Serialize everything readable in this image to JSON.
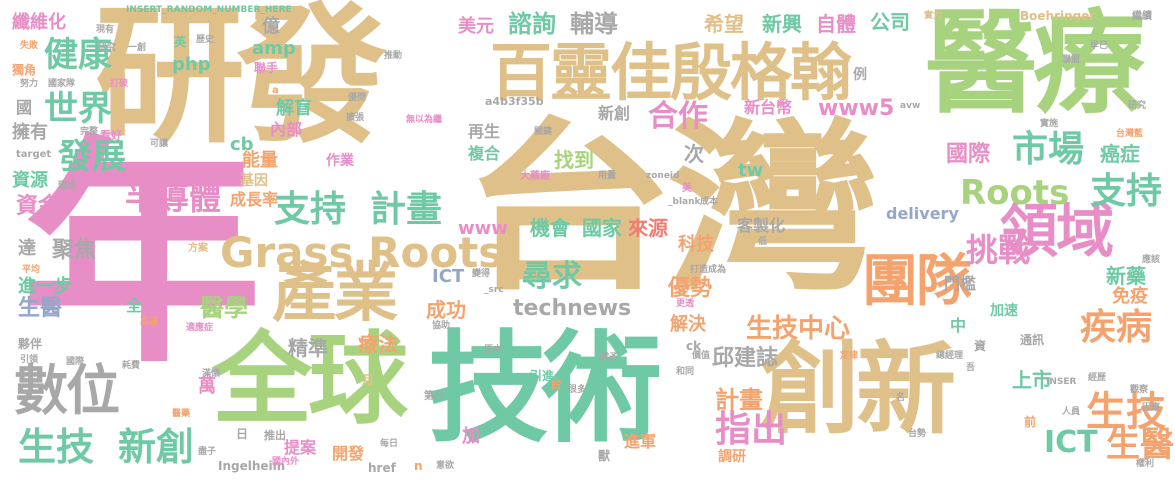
{
  "palette": {
    "tan": "#e0c089",
    "green": "#a8d37e",
    "teal": "#6fc9a4",
    "pink": "#e88ec7",
    "gray": "#a8a8a8",
    "orange": "#f4a36e",
    "blue": "#95a7c9",
    "red": "#ef7d71",
    "lime": "#c6db5c"
  },
  "words": {
    "w001": "研發",
    "w002": "台灣",
    "w003": "年",
    "w004": "醫療",
    "w005": "技術",
    "w006": "創新",
    "w007": "全球",
    "w008": "百靈佳殷格翰",
    "w009": "產業",
    "w010": "數位",
    "w011": "Grass Roots",
    "w012": "團隊",
    "w013": "領域",
    "w014": "Roots",
    "w015": "支持",
    "w016": "支持",
    "w017": "計畫",
    "w018": "健康",
    "w019": "世界",
    "w020": "發展",
    "w021": "半導體",
    "w022": "市場",
    "w023": "疾病",
    "w024": "挑戰",
    "w025": "生技",
    "w026": "新創",
    "w027": "指出",
    "w028": "生技",
    "w029": "ICT",
    "w030": "生醫",
    "w031": "尋求",
    "w032": "technews",
    "w033": "機會",
    "w034": "國家",
    "w035": "來源",
    "w036": "合作",
    "w037": "諮詢",
    "w038": "輔導",
    "w039": "希望",
    "w040": "公司",
    "w041": "新興",
    "w042": "自體",
    "w043": "美元",
    "w044": "www5",
    "w045": "新台幣",
    "w046": "再生",
    "w047": "複合",
    "w048": "找到",
    "w049": "國際",
    "w050": "癌症",
    "w051": "新藥",
    "w052": "免疫",
    "w053": "上市",
    "w054": "計畫",
    "w055": "生技中心",
    "w056": "邱建誌",
    "w057": "優勢",
    "w058": "解決",
    "w059": "成功",
    "w060": "精準",
    "w061": "療法",
    "w062": "醫學",
    "w063": "聚焦",
    "w064": "進一步",
    "w065": "生醫",
    "w066": "資金",
    "w067": "資源",
    "w068": "擁有",
    "w069": "纖維化",
    "w070": "億",
    "w071": "amp",
    "w072": "php",
    "w073": "解盲",
    "w074": "內部",
    "w075": "能量",
    "w076": "cb",
    "w077": "基因",
    "w078": "成長率",
    "w079": "作業",
    "w080": "科技",
    "w081": "www",
    "w082": "ICT",
    "w083": "delivery",
    "w084": "客製化",
    "w085": "tw",
    "w086": "門檻",
    "w087": "加速",
    "w088": "中",
    "w089": "萬",
    "w090": "提案",
    "w091": "開發",
    "w092": "進軍",
    "w093": "調研",
    "w094": "Ingelheim",
    "w095": "加",
    "w096": "Boehringer",
    "w097": "INSERT_RANDOM_NUMBER_HERE",
    "w098": "a4b3f35b",
    "w099": "次",
    "w100": "新創",
    "w101": "國",
    "w102": "全",
    "w103": "達",
    "w104": "月",
    "w105": "通訊",
    "w106": "href",
    "w107": "繼續",
    "w108": "實力",
    "w109": "聯手",
    "w110": "推動",
    "w111": "大藥廠",
    "w112": "方案",
    "w113": "第八",
    "w114": "引進",
    "w115": "日",
    "w116": "推出",
    "w117": "每日",
    "w118": "國內外",
    "w119": "ck",
    "w120": "_blank",
    "w121": "美",
    "w122": "zoneid",
    "w123": "avw",
    "w124": "例",
    "w125": "關鍵",
    "w126": "打造成為",
    "w127": "更透",
    "w128": "定律",
    "w129": "總經理",
    "w130": "INSER",
    "w131": "觀察",
    "w132": "因應",
    "w133": "人員",
    "w134": "獨角",
    "w135": "努力",
    "w136": "國家隊",
    "w137": "打破",
    "w138": "研究",
    "w139": "完整",
    "w140": "看好",
    "w141": "target",
    "w142": "可讓",
    "w143": "理想",
    "w144": "平均",
    "w145": "高速",
    "w146": "適應症",
    "w147": "夥伴",
    "w148": "引領",
    "w149": "國際",
    "w150": "醫藥",
    "w151": "台灣藍",
    "w152": "研究",
    "w153": "成本",
    "w154": "低",
    "w155": "名",
    "w156": "早已",
    "w157": "聯盟",
    "w158": "英",
    "w159": "歷史",
    "w160": "失敗",
    "w161": "現有",
    "w162": "一創",
    "w163": "a",
    "w164": "優問",
    "w165": "無以為繼",
    "w166": "擴張",
    "w167": "用量",
    "w168": "_src",
    "w169": "變得",
    "w170": "賦予",
    "w171": "協助",
    "w172": "台",
    "w173": "很多",
    "w174": "和同",
    "w175": "價值",
    "w176": "原本",
    "w177": "滿懷",
    "w178": "耗費",
    "w179": "盡子",
    "w180": "意欲",
    "w181": "獸",
    "w182": "n",
    "w183": "吾",
    "w184": "資",
    "w185": "前",
    "w186": "台勢",
    "w187": "權利",
    "w188": "經歷",
    "w189": "應該",
    "w190": "實施"
  }
}
